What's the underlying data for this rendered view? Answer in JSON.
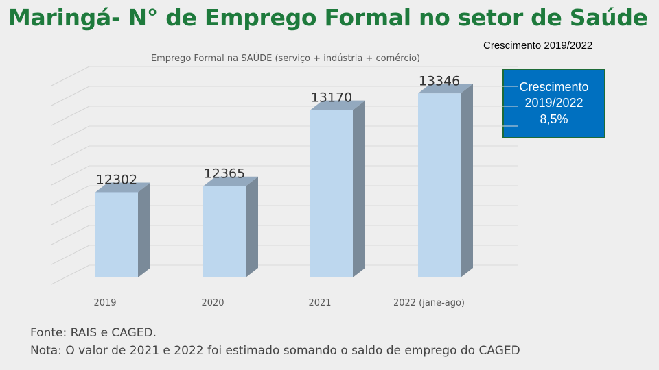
{
  "header": {
    "title": "Maringá- N° de Emprego Formal no setor de Saúde",
    "period_label": "Crescimento 2019/2022"
  },
  "growth_box": {
    "line1": "Crescimento",
    "line2": "2019/2022",
    "line3": "8,5%"
  },
  "chart_data": {
    "type": "bar",
    "title": "Emprego Formal na SAÚDE (serviço + indústria + comércio)",
    "categories": [
      "2019",
      "2020",
      "2021",
      "2022 (jane-ago)"
    ],
    "values": [
      12302,
      12365,
      13170,
      13346
    ],
    "data_labels": [
      "12302",
      "12365",
      "13170",
      "13346"
    ],
    "ylim": [
      11400,
      13500
    ],
    "grid": true,
    "colors": {
      "bar_front": "#bdd7ee",
      "bar_side": "#7a8a99",
      "bar_top": "#93a9bf"
    }
  },
  "footer": {
    "source": "Fonte: RAIS e CAGED.",
    "note": "Nota: O valor de 2021 e 2022 foi estimado somando o saldo de emprego do CAGED"
  }
}
